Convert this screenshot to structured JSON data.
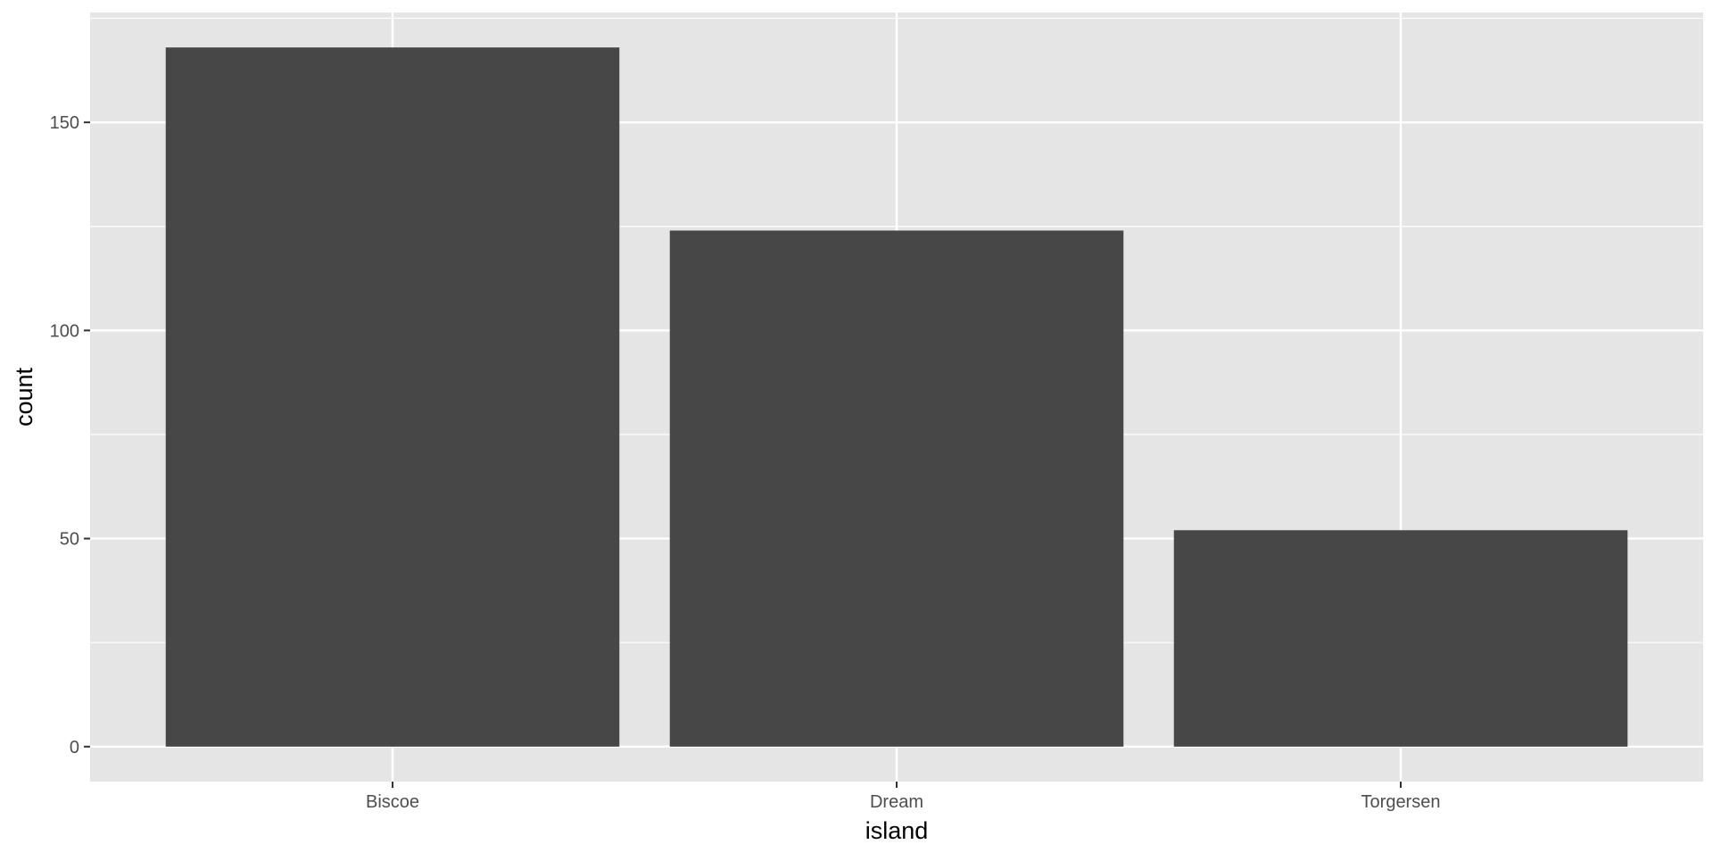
{
  "chart_data": {
    "type": "bar",
    "categories": [
      "Biscoe",
      "Dream",
      "Torgersen"
    ],
    "values": [
      168,
      124,
      52
    ],
    "title": "",
    "xlabel": "island",
    "ylabel": "count",
    "ylim": [
      -8.4,
      176.4
    ],
    "yticks": [
      0,
      50,
      100,
      150
    ],
    "ytick_labels": [
      "0",
      "50",
      "100",
      "150"
    ],
    "grid": true,
    "legend": "none",
    "colors": {
      "panel_background": "#e5e5e5",
      "grid": "#ffffff",
      "bar_fill": "#474747",
      "tick": "#333333",
      "tick_label": "#4d4d4d",
      "axis_title": "#000000"
    }
  }
}
